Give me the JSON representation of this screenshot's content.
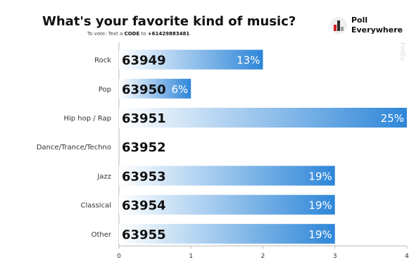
{
  "header": {
    "title": "What's your favorite kind of music?",
    "vote_prefix": "To vote:",
    "vote_mid": "Text a",
    "vote_code": "CODE",
    "vote_to": "to",
    "vote_number": "+61429883481"
  },
  "logo": {
    "line1": "Poll",
    "line2": "Everywhere",
    "icon_colors": [
      "#d61f26",
      "#2b2b2b",
      "#9a9a9a"
    ],
    "side_watermark": "PollEv"
  },
  "chart_data": {
    "type": "bar",
    "orientation": "horizontal",
    "categories": [
      "Rock",
      "Pop",
      "Hip hop / Rap",
      "Dance/Trance/Techno",
      "Jazz",
      "Classical",
      "Other"
    ],
    "codes": [
      "63949",
      "63950",
      "63951",
      "63952",
      "63953",
      "63954",
      "63955"
    ],
    "values": [
      2,
      1,
      4,
      0,
      3,
      3,
      3
    ],
    "percent_labels": [
      "13%",
      "6%",
      "25%",
      "",
      "19%",
      "19%",
      "19%"
    ],
    "xlim": [
      0,
      4
    ],
    "xticks": [
      "0",
      "1",
      "2",
      "3",
      "4"
    ],
    "bar_color_start": "#ffffff",
    "bar_color_end": "#2e86d8"
  }
}
